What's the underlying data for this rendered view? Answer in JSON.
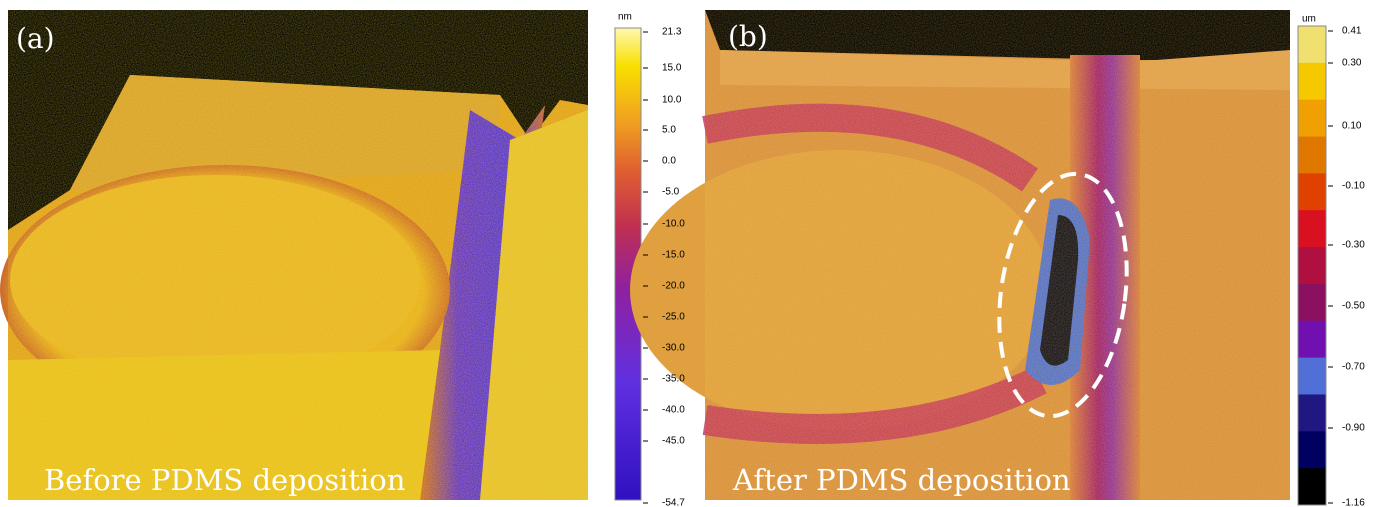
{
  "panels": [
    {
      "label": "(a)",
      "caption": "Before PDMS deposition",
      "unit": "nm",
      "ticks": [
        "21.3",
        "15.0",
        "10.0",
        "5.0",
        "0.0",
        "-5.0",
        "-10.0",
        "-15.0",
        "-20.0",
        "-25.0",
        "-30.0",
        "-35.0",
        "-40.0",
        "-45.0",
        "-54.7"
      ]
    },
    {
      "label": "(b)",
      "caption": "After PDMS deposition",
      "unit": "um",
      "ticks": [
        "0.41",
        "0.30",
        "0.10",
        "-0.10",
        "-0.30",
        "-0.50",
        "-0.70",
        "-0.90",
        "-1.16"
      ]
    }
  ]
}
